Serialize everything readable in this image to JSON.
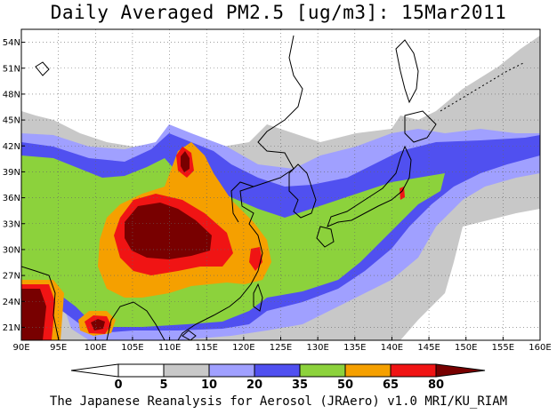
{
  "title": "Daily Averaged PM2.5 [ug/m3]: 15Mar2011",
  "footer": "The Japanese Reanalysis for Aerosol (JRAero) v1.0 MRI/KU_RIAM",
  "axes": {
    "lon_labels": [
      "90E",
      "95E",
      "100E",
      "105E",
      "110E",
      "115E",
      "120E",
      "125E",
      "130E",
      "135E",
      "140E",
      "145E",
      "150E",
      "155E",
      "160E"
    ],
    "lat_labels": [
      "54N",
      "51N",
      "48N",
      "45N",
      "42N",
      "39N",
      "36N",
      "33N",
      "30N",
      "27N",
      "24N",
      "21N"
    ]
  },
  "colorbar": {
    "levels": [
      "0",
      "5",
      "10",
      "20",
      "35",
      "50",
      "65",
      "80"
    ],
    "colors": [
      "#ffffff",
      "#ffffff",
      "#c8c8c8",
      "#a0a0ff",
      "#5050f0",
      "#8cd23c",
      "#f5a000",
      "#f01414",
      "#780000"
    ]
  },
  "colors": {
    "white": "#ffffff",
    "gray": "#c8c8c8",
    "lightblue": "#a0a0ff",
    "blue": "#5050f0",
    "green": "#8cd23c",
    "orange": "#f5a000",
    "red": "#f01414",
    "darkred": "#780000",
    "coast": "#000000"
  }
}
